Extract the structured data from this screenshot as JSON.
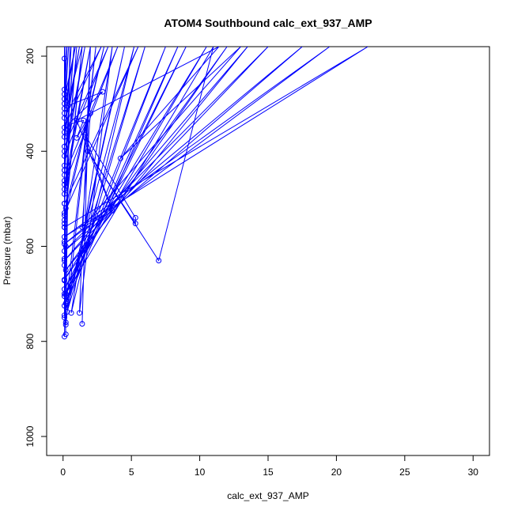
{
  "chart_data": {
    "type": "line",
    "title": "ATOM4 Southbound calc_ext_937_AMP",
    "xlabel": "calc_ext_937_AMP",
    "ylabel": "Pressure (mbar)",
    "xlim": [
      -1.2,
      31.2
    ],
    "ylim": [
      1040,
      180
    ],
    "y_reversed": true,
    "x_ticks": [
      0,
      5,
      10,
      15,
      20,
      25,
      30
    ],
    "y_ticks": [
      200,
      400,
      600,
      800,
      1000
    ],
    "grid": false,
    "series_color": "#0000ff",
    "series": [
      {
        "markers": "open-circle",
        "points": [
          [
            0.1,
            790
          ],
          [
            0.5,
            180
          ],
          [
            0.2,
            765
          ],
          [
            2.4,
            180
          ],
          [
            0.1,
            750
          ],
          [
            4.5,
            180
          ],
          [
            0.3,
            738
          ],
          [
            6.0,
            180
          ],
          [
            0.2,
            720
          ],
          [
            7.5,
            180
          ],
          [
            0.1,
            705
          ],
          [
            9.0,
            180
          ],
          [
            0.1,
            690
          ],
          [
            10.5,
            180
          ],
          [
            0.1,
            670
          ],
          [
            12.0,
            180
          ],
          [
            0.2,
            650
          ],
          [
            13.5,
            180
          ],
          [
            0.1,
            630
          ],
          [
            15.0,
            180
          ],
          [
            0.1,
            610
          ],
          [
            17.5,
            180
          ],
          [
            0.1,
            595
          ],
          [
            19.5,
            180
          ],
          [
            0.1,
            580
          ],
          [
            22.3,
            180
          ],
          [
            0.1,
            560
          ],
          [
            1.4,
            180
          ],
          [
            0.1,
            545
          ],
          [
            3.0,
            180
          ],
          [
            0.1,
            530
          ],
          [
            5.5,
            180
          ],
          [
            0.1,
            510
          ],
          [
            1.0,
            180
          ],
          [
            0.1,
            490
          ],
          [
            2.0,
            180
          ],
          [
            0.1,
            470
          ],
          [
            4.0,
            180
          ],
          [
            0.1,
            450
          ],
          [
            0.8,
            180
          ],
          [
            0.1,
            430
          ],
          [
            1.6,
            180
          ],
          [
            0.1,
            410
          ],
          [
            3.3,
            180
          ],
          [
            0.1,
            390
          ],
          [
            0.6,
            180
          ],
          [
            0.1,
            370
          ],
          [
            1.2,
            180
          ],
          [
            0.1,
            350
          ],
          [
            2.8,
            180
          ],
          [
            0.1,
            330
          ],
          [
            0.4,
            180
          ],
          [
            0.1,
            310
          ],
          [
            0.9,
            180
          ],
          [
            0.1,
            290
          ],
          [
            0.3,
            180
          ],
          [
            0.1,
            270
          ],
          [
            0.2,
            180
          ]
        ]
      },
      {
        "markers": "open-circle",
        "points": [
          [
            1.4,
            763
          ],
          [
            2.0,
            180
          ],
          [
            1.2,
            740
          ],
          [
            3.6,
            180
          ],
          [
            0.6,
            740
          ],
          [
            5.2,
            180
          ],
          [
            0.3,
            715
          ],
          [
            8.4,
            180
          ],
          [
            0.2,
            700
          ],
          [
            11.0,
            180
          ],
          [
            7.0,
            630
          ],
          [
            1.8,
            400
          ],
          [
            5.3,
            552
          ],
          [
            5.3,
            540
          ],
          [
            1.6,
            365
          ],
          [
            3.6,
            525
          ],
          [
            1.0,
            335
          ],
          [
            11.4,
            180
          ],
          [
            4.2,
            415
          ],
          [
            13.0,
            180
          ],
          [
            1.4,
            560
          ],
          [
            2.0,
            320
          ],
          [
            1.0,
            372
          ],
          [
            1.5,
            335
          ],
          [
            0.3,
            345
          ],
          [
            2.9,
            275
          ],
          [
            0.3,
            305
          ],
          [
            1.4,
            180
          ]
        ]
      },
      {
        "markers": "open-circle",
        "points": [
          [
            0.2,
            785
          ],
          [
            0.1,
            700
          ],
          [
            0.2,
            760
          ],
          [
            0.1,
            640
          ],
          [
            0.1,
            745
          ],
          [
            0.2,
            600
          ],
          [
            0.1,
            725
          ],
          [
            0.1,
            560
          ],
          [
            0.1,
            672
          ],
          [
            0.2,
            520
          ],
          [
            0.1,
            626
          ],
          [
            0.1,
            480
          ],
          [
            0.1,
            590
          ],
          [
            0.1,
            440
          ],
          [
            0.1,
            552
          ],
          [
            0.1,
            400
          ],
          [
            0.1,
            535
          ],
          [
            0.1,
            360
          ],
          [
            0.1,
            510
          ],
          [
            0.1,
            320
          ],
          [
            0.1,
            462
          ],
          [
            0.1,
            300
          ],
          [
            0.1,
            440
          ],
          [
            0.1,
            280
          ],
          [
            0.1,
            205
          ],
          [
            0.1,
            180
          ]
        ]
      }
    ]
  }
}
